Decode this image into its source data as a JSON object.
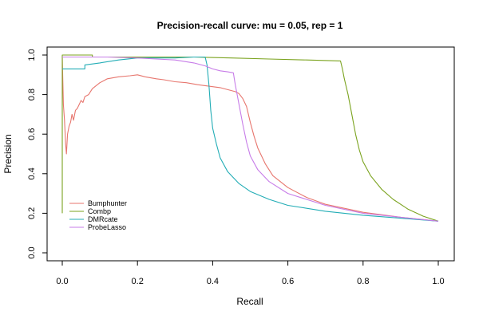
{
  "chart_data": {
    "type": "line",
    "title": "Precision-recall curve: mu = 0.05, rep = 1",
    "xlabel": "Recall",
    "ylabel": "Precision",
    "xlim": [
      0,
      1
    ],
    "ylim": [
      0,
      1
    ],
    "x_ticks": [
      0.0,
      0.2,
      0.4,
      0.6,
      0.8,
      1.0
    ],
    "y_ticks": [
      0.0,
      0.2,
      0.4,
      0.6,
      0.8,
      1.0
    ],
    "x_tick_labels": [
      "0.0",
      "0.2",
      "0.4",
      "0.6",
      "0.8",
      "1.0"
    ],
    "y_tick_labels": [
      "0.0",
      "0.2",
      "0.4",
      "0.6",
      "0.8",
      "1.0"
    ],
    "grid": false,
    "legend_position": "bottom-left",
    "series": [
      {
        "name": "Bumphunter",
        "color": "#E7766E",
        "points": [
          [
            0.0,
            0.99
          ],
          [
            0.003,
            0.75
          ],
          [
            0.006,
            0.67
          ],
          [
            0.009,
            0.55
          ],
          [
            0.011,
            0.5
          ],
          [
            0.014,
            0.6
          ],
          [
            0.018,
            0.64
          ],
          [
            0.022,
            0.66
          ],
          [
            0.026,
            0.7
          ],
          [
            0.03,
            0.67
          ],
          [
            0.035,
            0.72
          ],
          [
            0.04,
            0.73
          ],
          [
            0.045,
            0.75
          ],
          [
            0.05,
            0.77
          ],
          [
            0.055,
            0.76
          ],
          [
            0.06,
            0.79
          ],
          [
            0.07,
            0.8
          ],
          [
            0.08,
            0.83
          ],
          [
            0.1,
            0.86
          ],
          [
            0.12,
            0.88
          ],
          [
            0.15,
            0.89
          ],
          [
            0.18,
            0.895
          ],
          [
            0.2,
            0.9
          ],
          [
            0.22,
            0.89
          ],
          [
            0.25,
            0.88
          ],
          [
            0.27,
            0.875
          ],
          [
            0.3,
            0.865
          ],
          [
            0.33,
            0.86
          ],
          [
            0.36,
            0.85
          ],
          [
            0.38,
            0.845
          ],
          [
            0.4,
            0.84
          ],
          [
            0.42,
            0.835
          ],
          [
            0.44,
            0.825
          ],
          [
            0.46,
            0.815
          ],
          [
            0.47,
            0.805
          ],
          [
            0.48,
            0.78
          ],
          [
            0.49,
            0.74
          ],
          [
            0.5,
            0.66
          ],
          [
            0.51,
            0.59
          ],
          [
            0.52,
            0.53
          ],
          [
            0.54,
            0.45
          ],
          [
            0.56,
            0.39
          ],
          [
            0.6,
            0.33
          ],
          [
            0.65,
            0.28
          ],
          [
            0.7,
            0.245
          ],
          [
            0.8,
            0.205
          ],
          [
            0.9,
            0.18
          ],
          [
            1.0,
            0.16
          ]
        ]
      },
      {
        "name": "Combp",
        "color": "#7BA31F",
        "points": [
          [
            0.0,
            0.2
          ],
          [
            0.0,
            1.0
          ],
          [
            0.08,
            1.0
          ],
          [
            0.08,
            0.99
          ],
          [
            0.25,
            0.99
          ],
          [
            0.35,
            0.99
          ],
          [
            0.45,
            0.985
          ],
          [
            0.55,
            0.98
          ],
          [
            0.65,
            0.975
          ],
          [
            0.74,
            0.97
          ],
          [
            0.745,
            0.93
          ],
          [
            0.75,
            0.88
          ],
          [
            0.76,
            0.8
          ],
          [
            0.77,
            0.7
          ],
          [
            0.78,
            0.6
          ],
          [
            0.79,
            0.52
          ],
          [
            0.8,
            0.46
          ],
          [
            0.82,
            0.39
          ],
          [
            0.85,
            0.32
          ],
          [
            0.88,
            0.27
          ],
          [
            0.92,
            0.22
          ],
          [
            0.96,
            0.185
          ],
          [
            1.0,
            0.16
          ]
        ]
      },
      {
        "name": "DMRcate",
        "color": "#23ADB6",
        "points": [
          [
            0.0,
            0.93
          ],
          [
            0.06,
            0.93
          ],
          [
            0.06,
            0.95
          ],
          [
            0.1,
            0.96
          ],
          [
            0.15,
            0.975
          ],
          [
            0.2,
            0.985
          ],
          [
            0.3,
            0.985
          ],
          [
            0.35,
            0.99
          ],
          [
            0.38,
            0.99
          ],
          [
            0.385,
            0.95
          ],
          [
            0.39,
            0.85
          ],
          [
            0.395,
            0.72
          ],
          [
            0.4,
            0.63
          ],
          [
            0.41,
            0.55
          ],
          [
            0.42,
            0.48
          ],
          [
            0.44,
            0.41
          ],
          [
            0.47,
            0.35
          ],
          [
            0.5,
            0.31
          ],
          [
            0.55,
            0.27
          ],
          [
            0.6,
            0.24
          ],
          [
            0.7,
            0.21
          ],
          [
            0.8,
            0.19
          ],
          [
            0.9,
            0.175
          ],
          [
            1.0,
            0.16
          ]
        ]
      },
      {
        "name": "ProbeLasso",
        "color": "#C77CE8",
        "points": [
          [
            0.0,
            0.99
          ],
          [
            0.12,
            0.99
          ],
          [
            0.2,
            0.985
          ],
          [
            0.25,
            0.98
          ],
          [
            0.3,
            0.975
          ],
          [
            0.35,
            0.96
          ],
          [
            0.38,
            0.945
          ],
          [
            0.4,
            0.93
          ],
          [
            0.42,
            0.92
          ],
          [
            0.44,
            0.915
          ],
          [
            0.455,
            0.91
          ],
          [
            0.46,
            0.85
          ],
          [
            0.47,
            0.75
          ],
          [
            0.48,
            0.65
          ],
          [
            0.49,
            0.56
          ],
          [
            0.5,
            0.49
          ],
          [
            0.52,
            0.42
          ],
          [
            0.55,
            0.36
          ],
          [
            0.6,
            0.3
          ],
          [
            0.7,
            0.24
          ],
          [
            0.8,
            0.2
          ],
          [
            0.9,
            0.18
          ],
          [
            1.0,
            0.16
          ]
        ]
      }
    ]
  }
}
